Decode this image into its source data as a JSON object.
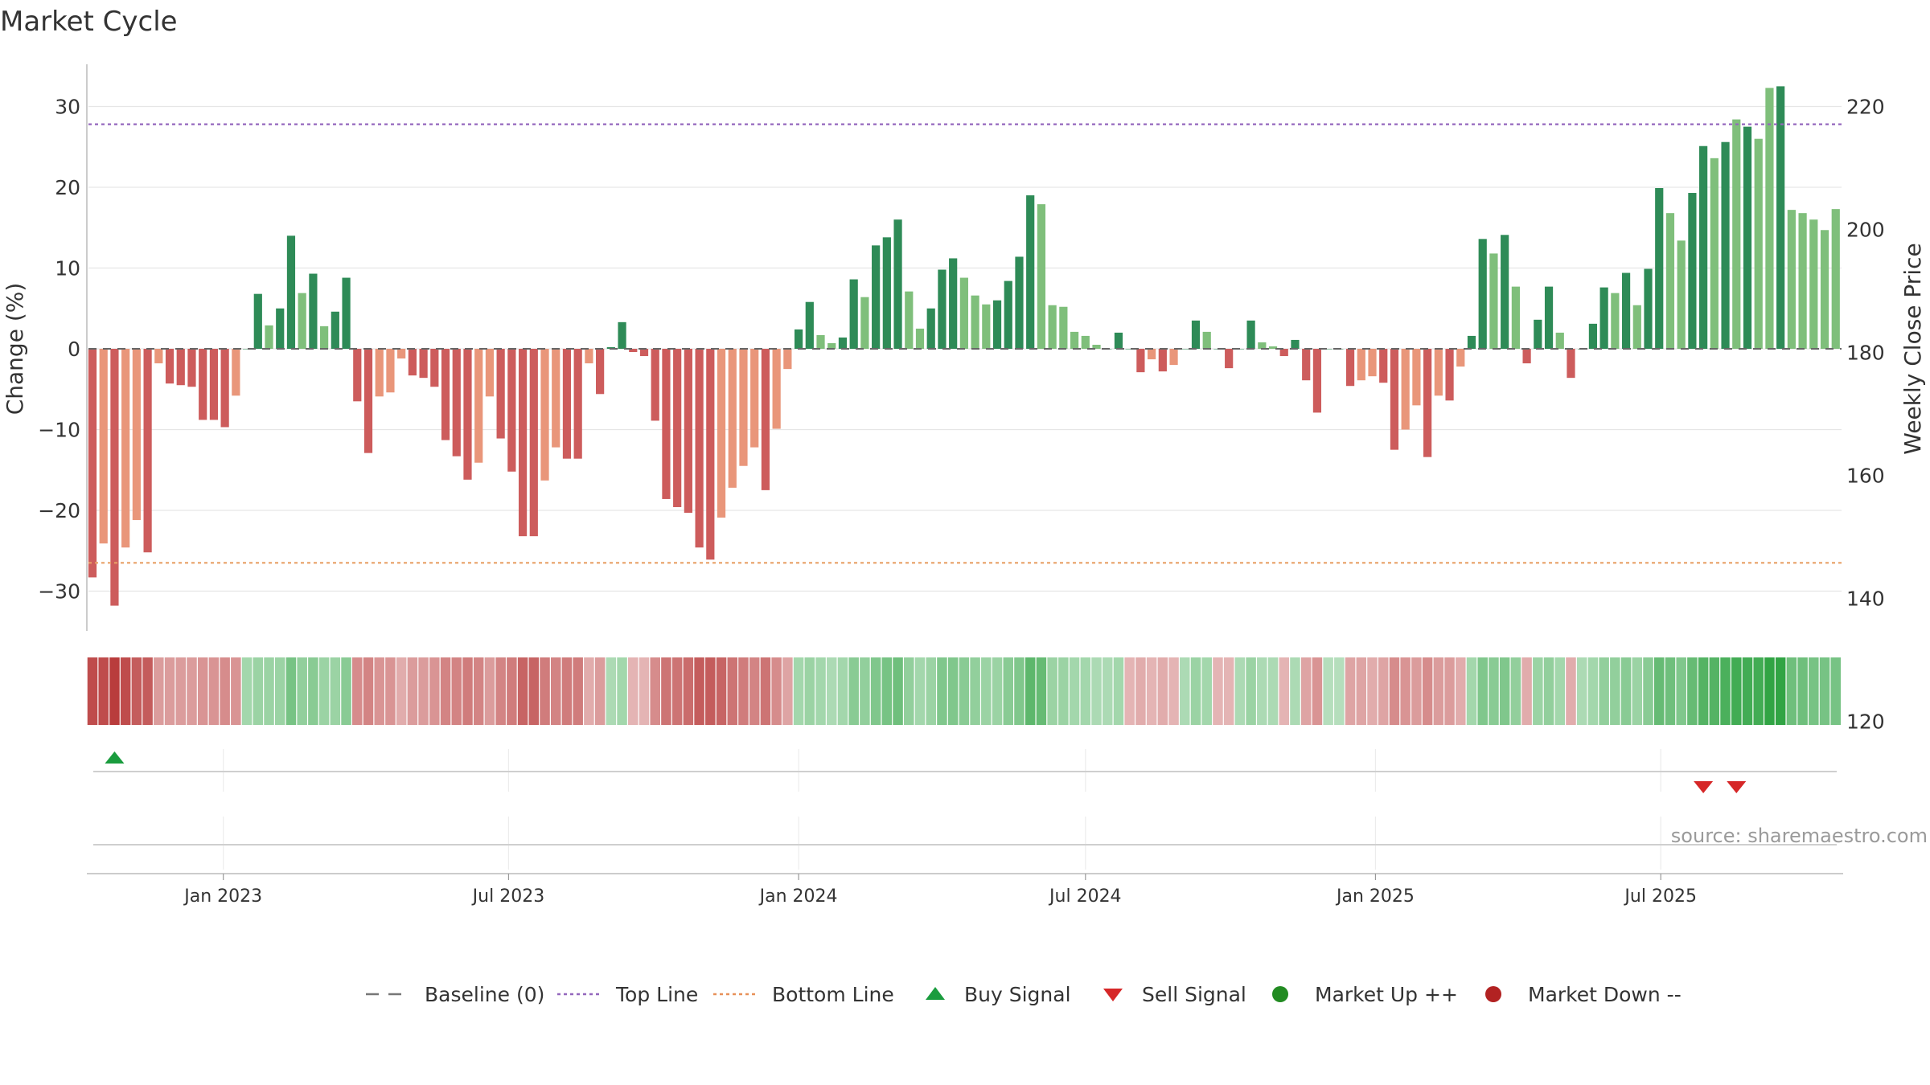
{
  "chart_data": {
    "type": "bar",
    "title": "Market Cycle",
    "ylabel_left": "Change (%)",
    "ylabel_right": "Weekly Close Price",
    "ylim": [
      -35,
      35
    ],
    "yticks": [
      30,
      20,
      10,
      0,
      -10,
      -20,
      -30
    ],
    "ylim_right": [
      110,
      235
    ],
    "yticks_right": [
      220,
      200,
      180,
      160,
      140,
      120
    ],
    "top_line": 27.8,
    "bottom_line": -26.5,
    "x_start": "2022-10-10",
    "week_days": 7,
    "x_end": "2025-10-13",
    "xticks": [
      {
        "date": "2023-01-01",
        "label": "Jan 2023"
      },
      {
        "date": "2023-07-01",
        "label": "Jul 2023"
      },
      {
        "date": "2024-01-01",
        "label": "Jan 2024"
      },
      {
        "date": "2024-07-01",
        "label": "Jul 2024"
      },
      {
        "date": "2025-01-01",
        "label": "Jan 2025"
      },
      {
        "date": "2025-07-01",
        "label": "Jul 2025"
      }
    ],
    "values": [
      -28.3,
      -24.1,
      -31.8,
      -24.6,
      -21.2,
      -25.2,
      -1.8,
      -4.3,
      -4.5,
      -4.7,
      -8.8,
      -8.8,
      -9.7,
      -5.8,
      0,
      6.8,
      2.9,
      5.0,
      14.0,
      6.9,
      9.3,
      2.8,
      4.6,
      8.8,
      -6.5,
      -12.9,
      -5.9,
      -5.4,
      -1.2,
      -3.3,
      -3.6,
      -4.7,
      -11.3,
      -13.3,
      -16.2,
      -14.1,
      -5.9,
      -11.1,
      -15.2,
      -23.2,
      -23.2,
      -16.3,
      -12.2,
      -13.6,
      -13.6,
      -1.8,
      -5.6,
      0.2,
      3.3,
      -0.4,
      -0.9,
      -8.9,
      -18.6,
      -19.6,
      -20.3,
      -24.6,
      -26.1,
      -20.9,
      -17.2,
      -14.5,
      -12.2,
      -17.5,
      -9.9,
      -2.5,
      2.4,
      5.8,
      1.7,
      0.7,
      1.4,
      8.6,
      6.4,
      12.8,
      13.8,
      16.0,
      7.1,
      2.5,
      5.0,
      9.8,
      11.2,
      8.8,
      6.6,
      5.5,
      6.0,
      8.4,
      11.4,
      19.0,
      17.9,
      5.4,
      5.2,
      2.1,
      1.6,
      0.5,
      0,
      2.0,
      0,
      -2.9,
      -1.3,
      -2.8,
      -2.0,
      0,
      3.5,
      2.1,
      0,
      -2.4,
      0,
      3.5,
      0.8,
      0.3,
      -0.9,
      1.1,
      -3.9,
      -7.9,
      0,
      0,
      -4.6,
      -3.9,
      -3.4,
      -4.2,
      -12.5,
      -10.0,
      -7.0,
      -13.4,
      -5.8,
      -6.4,
      -2.2,
      1.6,
      13.6,
      11.8,
      14.1,
      7.7,
      -1.8,
      3.6,
      7.7,
      2.0,
      -3.6,
      0,
      3.1,
      7.6,
      6.9,
      9.4,
      5.4,
      9.9,
      19.9,
      16.8,
      13.4,
      19.3,
      25.1,
      23.6,
      25.6,
      28.4,
      27.5,
      26.0,
      32.3,
      32.5,
      17.2,
      16.8,
      16.0,
      14.7,
      17.3
    ],
    "shades": [
      1,
      2,
      1,
      2,
      2,
      1,
      2,
      1,
      1,
      1,
      1,
      1,
      1,
      2,
      0,
      1,
      2,
      1,
      1,
      2,
      1,
      2,
      1,
      1,
      1,
      1,
      2,
      2,
      2,
      1,
      1,
      1,
      1,
      1,
      1,
      2,
      2,
      1,
      1,
      1,
      1,
      2,
      2,
      1,
      1,
      2,
      1,
      1,
      1,
      1,
      1,
      1,
      1,
      1,
      1,
      1,
      1,
      2,
      2,
      2,
      2,
      1,
      2,
      2,
      1,
      1,
      2,
      2,
      1,
      1,
      2,
      1,
      1,
      1,
      2,
      2,
      1,
      1,
      1,
      2,
      2,
      2,
      1,
      1,
      1,
      1,
      2,
      2,
      2,
      2,
      2,
      2,
      0,
      1,
      0,
      1,
      2,
      1,
      2,
      0,
      1,
      2,
      0,
      1,
      0,
      1,
      2,
      2,
      1,
      1,
      1,
      1,
      0,
      0,
      1,
      2,
      2,
      1,
      1,
      2,
      2,
      1,
      2,
      1,
      2,
      1,
      1,
      2,
      1,
      2,
      1,
      1,
      1,
      2,
      1,
      0,
      1,
      1,
      2,
      1,
      2,
      1,
      1,
      2,
      2,
      1,
      1,
      2,
      1,
      2,
      1,
      2,
      2,
      1,
      2,
      2,
      2,
      2,
      2,
      2
    ],
    "heat": [
      -0.9,
      -0.9,
      -1,
      -0.9,
      -0.8,
      -0.8,
      -0.4,
      -0.4,
      -0.4,
      -0.4,
      -0.45,
      -0.45,
      -0.5,
      -0.45,
      0.3,
      0.35,
      0.35,
      0.35,
      0.55,
      0.4,
      0.45,
      0.35,
      0.35,
      0.45,
      -0.5,
      -0.55,
      -0.45,
      -0.45,
      -0.3,
      -0.4,
      -0.4,
      -0.45,
      -0.55,
      -0.55,
      -0.6,
      -0.55,
      -0.4,
      -0.55,
      -0.6,
      -0.75,
      -0.75,
      -0.6,
      -0.55,
      -0.6,
      -0.6,
      -0.3,
      -0.4,
      0.25,
      0.3,
      -0.25,
      -0.25,
      -0.5,
      -0.65,
      -0.65,
      -0.7,
      -0.8,
      -0.8,
      -0.75,
      -0.65,
      -0.6,
      -0.55,
      -0.65,
      -0.5,
      -0.35,
      0.3,
      0.35,
      0.3,
      0.25,
      0.3,
      0.45,
      0.4,
      0.5,
      0.55,
      0.6,
      0.4,
      0.3,
      0.35,
      0.5,
      0.5,
      0.45,
      0.4,
      0.35,
      0.35,
      0.45,
      0.5,
      0.7,
      0.65,
      0.35,
      0.35,
      0.3,
      0.3,
      0.25,
      0.25,
      0.3,
      -0.25,
      -0.3,
      -0.25,
      -0.3,
      -0.25,
      0.25,
      0.35,
      0.3,
      -0.25,
      -0.25,
      0.25,
      0.35,
      0.25,
      0.25,
      -0.25,
      0.25,
      -0.35,
      -0.45,
      0.2,
      0.2,
      -0.35,
      -0.35,
      -0.3,
      -0.35,
      -0.5,
      -0.45,
      -0.4,
      -0.5,
      -0.4,
      -0.4,
      -0.3,
      0.3,
      0.5,
      0.45,
      0.5,
      0.4,
      -0.3,
      0.35,
      0.4,
      0.3,
      -0.3,
      0.25,
      0.3,
      0.4,
      0.4,
      0.45,
      0.35,
      0.45,
      0.65,
      0.6,
      0.5,
      0.65,
      0.75,
      0.75,
      0.8,
      0.85,
      0.85,
      0.85,
      0.95,
      0.95,
      0.6,
      0.6,
      0.55,
      0.55,
      0.55
    ],
    "buy_signals": [
      2
    ],
    "sell_signals": [
      146,
      149
    ],
    "legend": [
      {
        "label": "Baseline (0)",
        "kind": "dash",
        "color": "#777777"
      },
      {
        "label": "Top Line",
        "kind": "dot",
        "color": "#9467bd"
      },
      {
        "label": "Bottom Line",
        "kind": "dot",
        "color": "#e8915a"
      },
      {
        "label": "Buy Signal",
        "kind": "up",
        "color": "#1a9c3e"
      },
      {
        "label": "Sell Signal",
        "kind": "down",
        "color": "#d62728"
      },
      {
        "label": "Market Up ++",
        "kind": "circle",
        "color": "#228b22"
      },
      {
        "label": "Market Down --",
        "kind": "circle",
        "color": "#b22222"
      }
    ],
    "source": "source: sharemaestro.com",
    "colors": {
      "up_dark": "#2e8b57",
      "up_light": "#7fbf7b",
      "down_dark": "#cd5c5c",
      "down_light": "#e9967a",
      "top_line": "#9467bd",
      "bottom_line": "#e8a066",
      "buy": "#1a9c3e",
      "sell": "#d62728"
    }
  }
}
